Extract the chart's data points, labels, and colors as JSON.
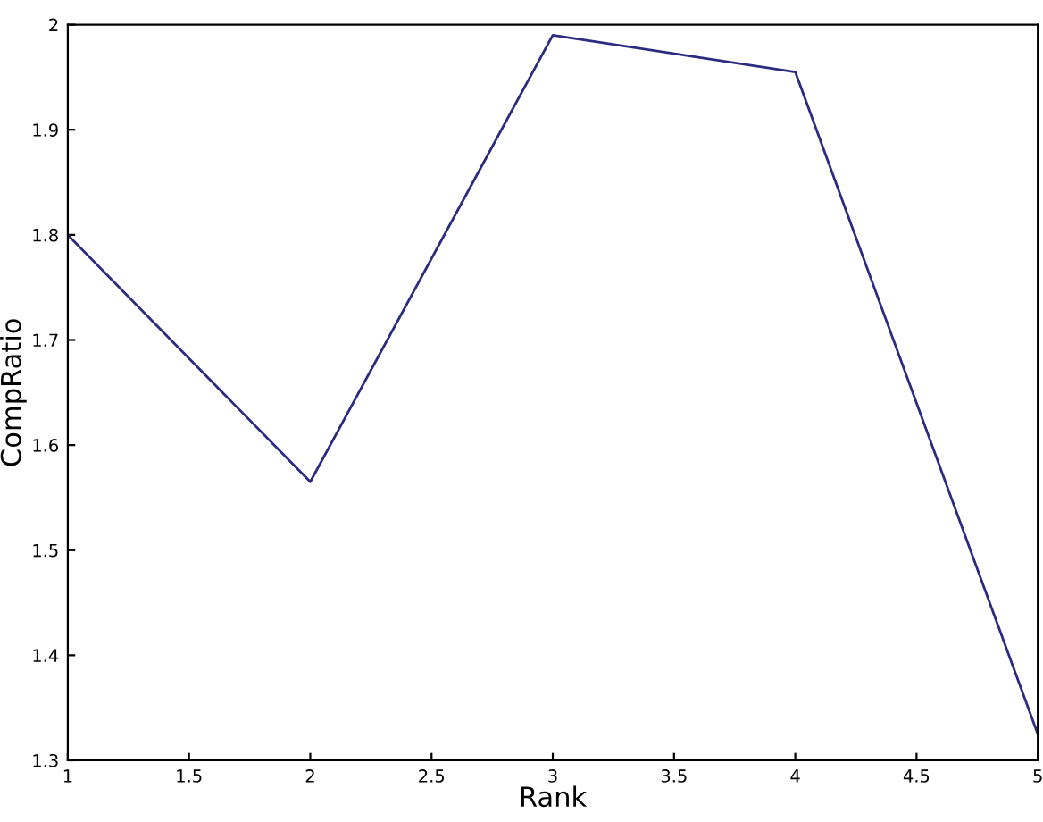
{
  "chart_data": {
    "type": "line",
    "xlabel": "Rank",
    "ylabel": "CompRatio",
    "x": [
      1,
      2,
      3,
      4,
      5
    ],
    "series": [
      {
        "color": "#2b2b80",
        "values": [
          1.8,
          1.565,
          1.99,
          1.955,
          1.325
        ]
      }
    ],
    "xlim": [
      1,
      5
    ],
    "ylim": [
      1.3,
      2
    ],
    "xticks": [
      1,
      1.5,
      2,
      2.5,
      3,
      3.5,
      4,
      4.5,
      5
    ],
    "yticks": [
      1.3,
      1.4,
      1.5,
      1.6,
      1.7,
      1.8,
      1.9,
      2
    ],
    "grid": false,
    "legend": false
  }
}
